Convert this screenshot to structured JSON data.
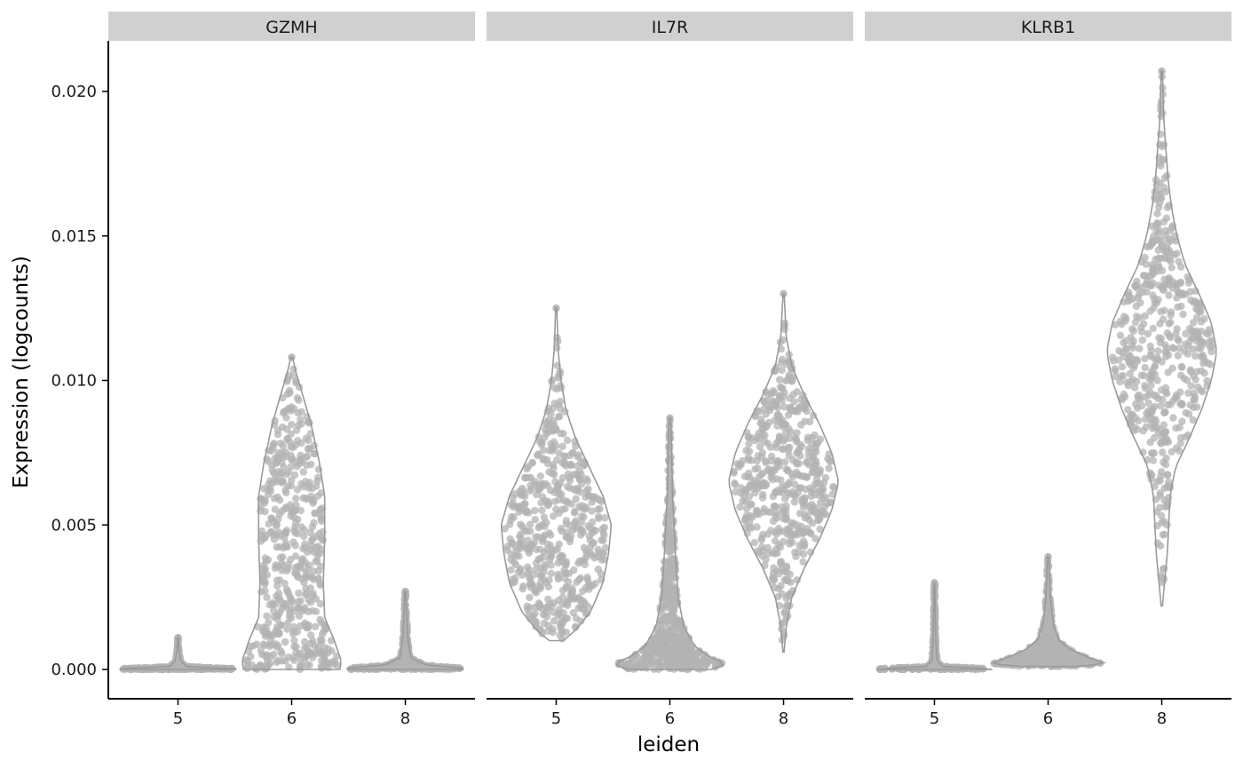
{
  "chart_data": {
    "type": "violin",
    "xlabel": "leiden",
    "ylabel": "Expression (logcounts)",
    "ylim": [
      -0.001,
      0.0217
    ],
    "y_ticks": [
      0.0,
      0.005,
      0.01,
      0.015,
      0.02
    ],
    "y_tick_labels": [
      "0.000",
      "0.005",
      "0.010",
      "0.015",
      "0.020"
    ],
    "categories": [
      "5",
      "6",
      "8"
    ],
    "grid": false,
    "legend": "none",
    "colors": {
      "points": "#b3b3b3",
      "violin_outline": "#9a9a9a",
      "strip_fill": "#d0d0d0",
      "axis": "#000000"
    },
    "panels": [
      {
        "title": "GZMH",
        "groups": [
          {
            "cluster": "5",
            "max": 0.0011,
            "profile": [
              [
                0,
                0.42
              ],
              [
                3e-05,
                0.42
              ],
              [
                0.0001,
                0.06
              ],
              [
                0.0003,
                0.02
              ],
              [
                0.0007,
                0.006
              ],
              [
                0.0011,
                0.003
              ]
            ]
          },
          {
            "cluster": "6",
            "max": 0.0108,
            "profile": [
              [
                0,
                0.35
              ],
              [
                0.0003,
                0.36
              ],
              [
                0.001,
                0.31
              ],
              [
                0.0018,
                0.24
              ],
              [
                0.003,
                0.23
              ],
              [
                0.0045,
                0.24
              ],
              [
                0.006,
                0.24
              ],
              [
                0.0072,
                0.2
              ],
              [
                0.0085,
                0.14
              ],
              [
                0.0095,
                0.08
              ],
              [
                0.0103,
                0.03
              ],
              [
                0.0108,
                0.006
              ]
            ]
          },
          {
            "cluster": "8",
            "max": 0.0027,
            "profile": [
              [
                0,
                0.42
              ],
              [
                5e-05,
                0.42
              ],
              [
                0.00015,
                0.15
              ],
              [
                0.0004,
                0.04
              ],
              [
                0.001,
                0.02
              ],
              [
                0.0018,
                0.01
              ],
              [
                0.0027,
                0.004
              ]
            ]
          }
        ]
      },
      {
        "title": "IL7R",
        "groups": [
          {
            "cluster": "5",
            "max": 0.0125,
            "profile": [
              [
                0.001,
                0.05
              ],
              [
                0.0013,
                0.13
              ],
              [
                0.002,
                0.25
              ],
              [
                0.003,
                0.34
              ],
              [
                0.004,
                0.38
              ],
              [
                0.005,
                0.4
              ],
              [
                0.006,
                0.34
              ],
              [
                0.007,
                0.24
              ],
              [
                0.008,
                0.14
              ],
              [
                0.009,
                0.07
              ],
              [
                0.01,
                0.035
              ],
              [
                0.011,
                0.015
              ],
              [
                0.0125,
                0.004
              ]
            ]
          },
          {
            "cluster": "6",
            "max": 0.0087,
            "profile": [
              [
                0,
                0.3
              ],
              [
                0.0002,
                0.42
              ],
              [
                0.0004,
                0.3
              ],
              [
                0.0008,
                0.18
              ],
              [
                0.0015,
                0.1
              ],
              [
                0.0025,
                0.06
              ],
              [
                0.004,
                0.04
              ],
              [
                0.006,
                0.02
              ],
              [
                0.0087,
                0.006
              ]
            ]
          },
          {
            "cluster": "8",
            "max": 0.013,
            "profile": [
              [
                0.0006,
                0.004
              ],
              [
                0.0015,
                0.02
              ],
              [
                0.0025,
                0.06
              ],
              [
                0.0035,
                0.15
              ],
              [
                0.0045,
                0.26
              ],
              [
                0.0055,
                0.35
              ],
              [
                0.0065,
                0.4
              ],
              [
                0.0075,
                0.35
              ],
              [
                0.0085,
                0.26
              ],
              [
                0.0095,
                0.15
              ],
              [
                0.0105,
                0.06
              ],
              [
                0.0115,
                0.02
              ],
              [
                0.013,
                0.004
              ]
            ]
          }
        ]
      },
      {
        "title": "KLRB1",
        "groups": [
          {
            "cluster": "5",
            "max": 0.003,
            "profile": [
              [
                0,
                0.42
              ],
              [
                3e-05,
                0.42
              ],
              [
                0.0001,
                0.06
              ],
              [
                0.0003,
                0.02
              ],
              [
                0.001,
                0.01
              ],
              [
                0.002,
                0.006
              ],
              [
                0.003,
                0.003
              ]
            ]
          },
          {
            "cluster": "6",
            "max": 0.0039,
            "profile": [
              [
                0.0001,
                0.2
              ],
              [
                0.0002,
                0.42
              ],
              [
                0.0004,
                0.3
              ],
              [
                0.0007,
                0.16
              ],
              [
                0.001,
                0.08
              ],
              [
                0.0015,
                0.04
              ],
              [
                0.0025,
                0.015
              ],
              [
                0.0039,
                0.005
              ]
            ]
          },
          {
            "cluster": "8",
            "max": 0.0207,
            "profile": [
              [
                0.0022,
                0.005
              ],
              [
                0.003,
                0.02
              ],
              [
                0.004,
                0.04
              ],
              [
                0.005,
                0.05
              ],
              [
                0.006,
                0.06
              ],
              [
                0.007,
                0.1
              ],
              [
                0.008,
                0.2
              ],
              [
                0.009,
                0.29
              ],
              [
                0.01,
                0.36
              ],
              [
                0.011,
                0.4
              ],
              [
                0.012,
                0.36
              ],
              [
                0.013,
                0.27
              ],
              [
                0.014,
                0.17
              ],
              [
                0.015,
                0.11
              ],
              [
                0.016,
                0.07
              ],
              [
                0.017,
                0.045
              ],
              [
                0.018,
                0.03
              ],
              [
                0.019,
                0.015
              ],
              [
                0.0207,
                0.004
              ]
            ]
          }
        ]
      }
    ]
  }
}
